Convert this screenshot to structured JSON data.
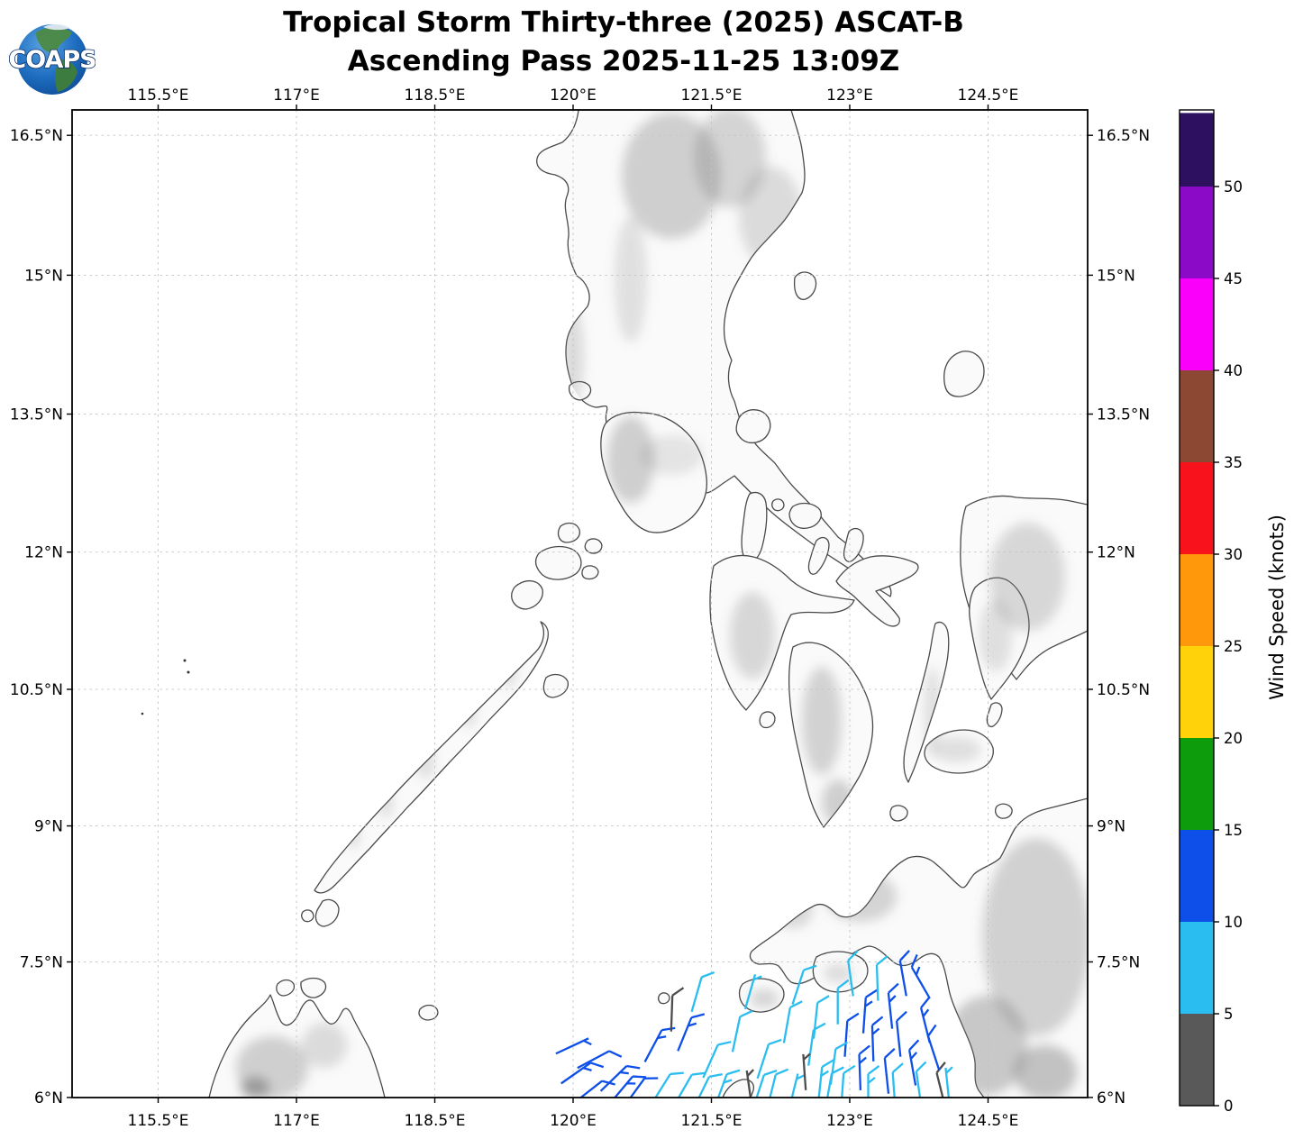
{
  "title": {
    "line1": "Tropical Storm Thirty-three (2025) ASCAT-B",
    "line2": "Ascending Pass 2025-11-25 13:09Z"
  },
  "logo": {
    "text": "COAPS"
  },
  "axes": {
    "x_ticks": [
      {
        "lon": 115.5,
        "label": "115.5°E"
      },
      {
        "lon": 117.0,
        "label": "117°E"
      },
      {
        "lon": 118.5,
        "label": "118.5°E"
      },
      {
        "lon": 120.0,
        "label": "120°E"
      },
      {
        "lon": 121.5,
        "label": "121.5°E"
      },
      {
        "lon": 123.0,
        "label": "123°E"
      },
      {
        "lon": 124.5,
        "label": "124.5°E"
      }
    ],
    "y_ticks": [
      {
        "lat": 16.5,
        "label": "16.5°N"
      },
      {
        "lat": 15.0,
        "label": "15°N"
      },
      {
        "lat": 13.5,
        "label": "13.5°N"
      },
      {
        "lat": 12.0,
        "label": "12°N"
      },
      {
        "lat": 10.5,
        "label": "10.5°N"
      },
      {
        "lat": 9.0,
        "label": "9°N"
      },
      {
        "lat": 7.5,
        "label": "7.5°N"
      },
      {
        "lat": 6.0,
        "label": "6°N"
      }
    ]
  },
  "colorbar": {
    "title": "Wind Speed (knots)",
    "tick_values": [
      0,
      5,
      10,
      15,
      20,
      25,
      30,
      35,
      40,
      45,
      50
    ],
    "bins": [
      {
        "from": 0,
        "to": 5,
        "color": "#595959"
      },
      {
        "from": 5,
        "to": 10,
        "color": "#29bdf0"
      },
      {
        "from": 10,
        "to": 15,
        "color": "#0d4fe8"
      },
      {
        "from": 15,
        "to": 20,
        "color": "#0c9c0c"
      },
      {
        "from": 20,
        "to": 25,
        "color": "#ffd20a"
      },
      {
        "from": 25,
        "to": 30,
        "color": "#ff980a"
      },
      {
        "from": 30,
        "to": 35,
        "color": "#f8121c"
      },
      {
        "from": 35,
        "to": 40,
        "color": "#8c4832"
      },
      {
        "from": 40,
        "to": 45,
        "color": "#fa00fa"
      },
      {
        "from": 45,
        "to": 50,
        "color": "#8a0ac8"
      },
      {
        "from": 50,
        "to": 54,
        "color": "#2e1060"
      }
    ]
  },
  "chart_data": {
    "type": "map",
    "projection": "mercator",
    "region": "Philippines",
    "title": "Tropical Storm Thirty-three (2025) ASCAT-B",
    "subtitle": "Ascending Pass 2025-11-25 13:09Z",
    "satellite": "ASCAT-B",
    "pass_type": "Ascending",
    "datetime_utc": "2025-11-25 13:09Z",
    "lon_range_deg_e": [
      114.57,
      125.58
    ],
    "lat_range_deg_n": [
      6.0,
      16.78
    ],
    "colorbar_label": "Wind Speed (knots)",
    "colorbar_ticks_knots": [
      0,
      5,
      10,
      15,
      20,
      25,
      30,
      35,
      40,
      45,
      50
    ],
    "barb_color_speed_knots": {
      "g": "0-5 (gray)",
      "c": "5-10 (cyan)",
      "b": "10-15 (blue)"
    },
    "barb_colors": {
      "g": "#4d4d4d",
      "c": "#29bdf0",
      "b": "#0d4fe8"
    },
    "wind_barbs": {
      "columns": [
        "lon_e",
        "lat_n",
        "staff_dir_deg_cw_from_north",
        "speed_class",
        "flags"
      ],
      "rows": [
        [
          120.03,
          6.27,
          55,
          "b",
          "fh"
        ],
        [
          120.22,
          6.42,
          62,
          "b",
          "f"
        ],
        [
          120.44,
          6.21,
          46,
          "b",
          "fh"
        ],
        [
          120.16,
          6.06,
          52,
          "b",
          "f"
        ],
        [
          120.52,
          6.08,
          40,
          "b",
          "fh"
        ],
        [
          119.99,
          6.57,
          65,
          "b",
          "h"
        ],
        [
          120.87,
          6.57,
          28,
          "b",
          "fh"
        ],
        [
          120.95,
          6.09,
          32,
          "c",
          "f"
        ],
        [
          120.66,
          6.05,
          36,
          "b",
          "f"
        ],
        [
          121.21,
          6.7,
          22,
          "b",
          "fh"
        ],
        [
          121.34,
          7.14,
          16,
          "c",
          "f"
        ],
        [
          121.49,
          6.4,
          24,
          "c",
          "f"
        ],
        [
          121.6,
          6.07,
          20,
          "c",
          "fh"
        ],
        [
          121.77,
          6.7,
          12,
          "c",
          "f"
        ],
        [
          121.92,
          7.17,
          16,
          "c",
          "h"
        ],
        [
          122.06,
          6.4,
          18,
          "c",
          "f"
        ],
        [
          122.15,
          6.06,
          14,
          "c",
          "f"
        ],
        [
          122.32,
          6.8,
          10,
          "c",
          "f"
        ],
        [
          122.44,
          7.22,
          18,
          "c",
          "f"
        ],
        [
          122.58,
          6.55,
          8,
          "c",
          "f"
        ],
        [
          122.68,
          6.14,
          6,
          "c",
          "fh"
        ],
        [
          122.77,
          6.07,
          10,
          "c",
          "f"
        ],
        [
          122.39,
          6.07,
          14,
          "c",
          "h"
        ],
        [
          122.01,
          6.06,
          18,
          "c",
          "f"
        ],
        [
          121.39,
          6.05,
          26,
          "c",
          "f"
        ],
        [
          121.19,
          6.08,
          30,
          "c",
          "f"
        ],
        [
          121.07,
          6.93,
          2,
          "g",
          "f"
        ],
        [
          121.91,
          6.1,
          -8,
          "g",
          "h"
        ],
        [
          122.51,
          6.28,
          -4,
          "g",
          "h"
        ],
        [
          123.99,
          6.08,
          -14,
          "g",
          "f"
        ],
        [
          122.87,
          7.01,
          0,
          "c",
          "f"
        ],
        [
          123.01,
          7.32,
          -8,
          "c",
          "f"
        ],
        [
          123.16,
          6.91,
          4,
          "b",
          "fh"
        ],
        [
          123.3,
          7.27,
          -2,
          "c",
          "f"
        ],
        [
          123.44,
          6.96,
          -6,
          "b",
          "fh"
        ],
        [
          123.58,
          7.32,
          -10,
          "b",
          "f"
        ],
        [
          123.77,
          7.27,
          -30,
          "b",
          "fh"
        ],
        [
          122.96,
          6.65,
          4,
          "b",
          "f"
        ],
        [
          123.25,
          6.6,
          -2,
          "b",
          "fh"
        ],
        [
          123.53,
          6.65,
          -6,
          "b",
          "f"
        ],
        [
          123.82,
          6.8,
          -14,
          "b",
          "fh"
        ],
        [
          122.82,
          6.34,
          8,
          "c",
          "f"
        ],
        [
          123.11,
          6.28,
          -2,
          "b",
          "fh"
        ],
        [
          123.4,
          6.24,
          -6,
          "b",
          "f"
        ],
        [
          123.68,
          6.33,
          -10,
          "b",
          "fh"
        ],
        [
          123.91,
          6.49,
          -18,
          "b",
          "f"
        ],
        [
          122.92,
          6.07,
          4,
          "c",
          "f"
        ],
        [
          123.2,
          6.06,
          0,
          "c",
          "fh"
        ],
        [
          123.48,
          6.08,
          -4,
          "c",
          "f"
        ],
        [
          123.75,
          6.09,
          -8,
          "c",
          "f"
        ],
        [
          124.06,
          6.13,
          -6,
          "c",
          "h"
        ],
        [
          122.63,
          6.85,
          6,
          "c",
          "f"
        ]
      ]
    }
  }
}
